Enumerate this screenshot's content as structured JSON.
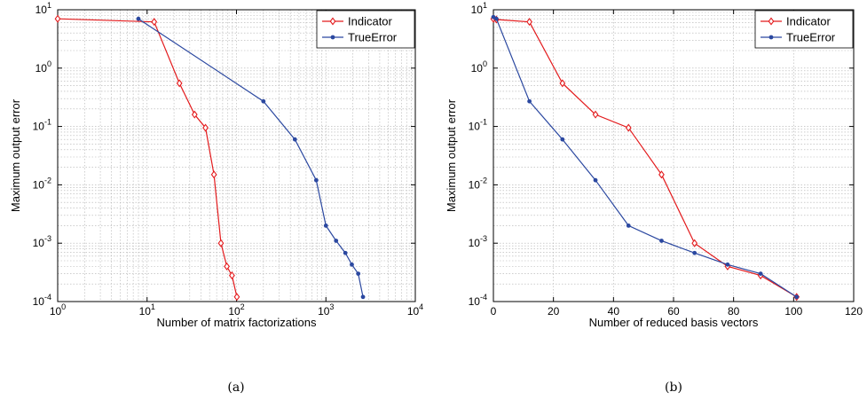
{
  "chart_data": [
    {
      "type": "line",
      "xscale": "log",
      "yscale": "log",
      "xlim": [
        1,
        10000
      ],
      "ylim": [
        0.0001,
        10
      ],
      "xlabel": "Number of matrix factorizations",
      "ylabel": "Maximum output error",
      "x_ticks": [
        "10^0",
        "10^1",
        "10^2",
        "10^3",
        "10^4"
      ],
      "y_ticks": [
        "10^-4",
        "10^-3",
        "10^-2",
        "10^-1",
        "10^0",
        "10^1"
      ],
      "grid": true,
      "legend_position": "top-right",
      "caption": "(a)",
      "series": [
        {
          "name": "Indicator",
          "color": "#e31a1c",
          "marker": "diamond",
          "x": [
            1,
            12,
            23,
            34,
            45,
            56,
            67,
            78,
            89,
            101
          ],
          "y": [
            7.0,
            6.2,
            0.55,
            0.16,
            0.095,
            0.015,
            0.001,
            0.0004,
            0.00028,
            0.00012
          ]
        },
        {
          "name": "TrueError",
          "color": "#2b48a0",
          "marker": "dot",
          "x": [
            8,
            200,
            450,
            780,
            1000,
            1300,
            1650,
            1950,
            2300,
            2600
          ],
          "y": [
            7.0,
            0.27,
            0.06,
            0.012,
            0.002,
            0.0011,
            0.00068,
            0.00043,
            0.0003,
            0.00012
          ]
        }
      ]
    },
    {
      "type": "line",
      "xscale": "linear",
      "yscale": "log",
      "xlim": [
        0,
        120
      ],
      "ylim": [
        0.0001,
        10
      ],
      "xlabel": "Number of reduced basis vectors",
      "ylabel": "Maximum output error",
      "x_ticks": [
        "0",
        "20",
        "40",
        "60",
        "80",
        "100",
        "120"
      ],
      "y_ticks": [
        "10^-4",
        "10^-3",
        "10^-2",
        "10^-1",
        "10^0",
        "10^1"
      ],
      "grid": true,
      "legend_position": "top-right",
      "caption": "(b)",
      "series": [
        {
          "name": "Indicator",
          "color": "#e31a1c",
          "marker": "diamond",
          "x": [
            0,
            1,
            12,
            23,
            34,
            45,
            56,
            67,
            78,
            89,
            101
          ],
          "y": [
            7.0,
            6.8,
            6.2,
            0.55,
            0.16,
            0.095,
            0.015,
            0.001,
            0.0004,
            0.00028,
            0.00012
          ]
        },
        {
          "name": "TrueError",
          "color": "#2b48a0",
          "marker": "dot",
          "x": [
            0,
            1,
            12,
            23,
            34,
            45,
            56,
            67,
            78,
            89,
            101
          ],
          "y": [
            7.5,
            7.0,
            0.27,
            0.06,
            0.012,
            0.002,
            0.0011,
            0.00068,
            0.00043,
            0.0003,
            0.00012
          ]
        }
      ]
    }
  ]
}
